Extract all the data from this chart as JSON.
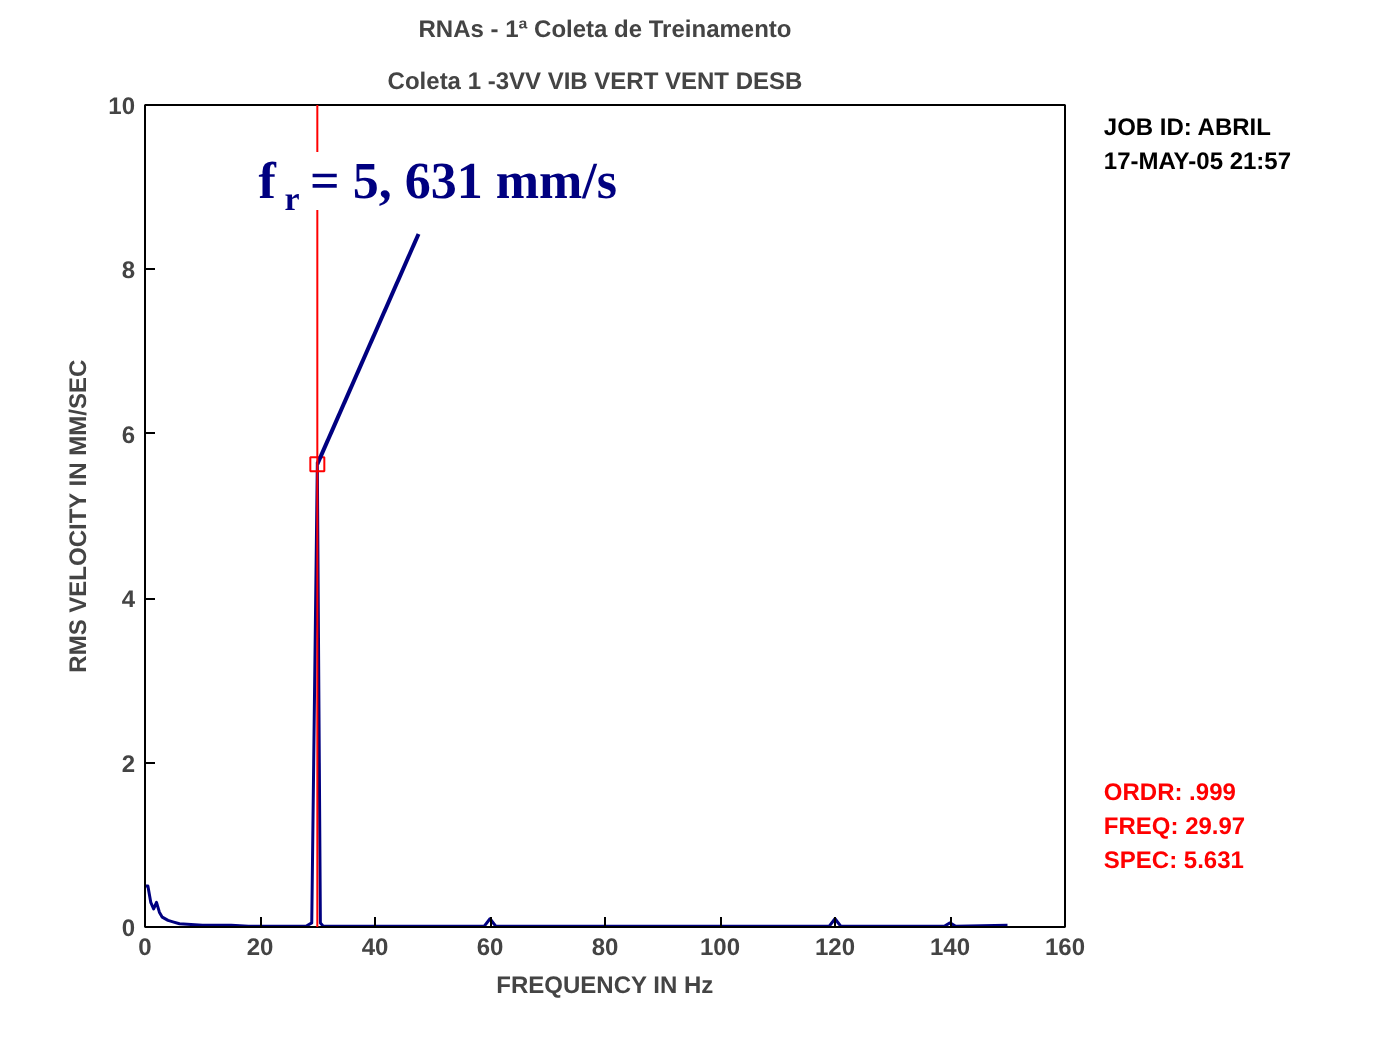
{
  "chart_data": {
    "type": "line",
    "title": "RNAs - 1ª Coleta de Treinamento",
    "subtitle": "Coleta 1  -3VV   VIB VERT VENT DESB",
    "xlabel": "FREQUENCY IN Hz",
    "ylabel": "RMS VELOCITY IN MM/SEC",
    "x": [
      0,
      0.5,
      1,
      1.5,
      2,
      2.5,
      3,
      4,
      5,
      6,
      8,
      10,
      15,
      18,
      20,
      28,
      29,
      29.97,
      30.5,
      31,
      59,
      60,
      61,
      119,
      120,
      121,
      139,
      140,
      141,
      150
    ],
    "series": [
      {
        "color": "#000080",
        "values": [
          0.5,
          0.5,
          0.3,
          0.22,
          0.3,
          0.18,
          0.12,
          0.08,
          0.06,
          0.04,
          0.03,
          0.02,
          0.02,
          0.01,
          0.01,
          0.01,
          0.05,
          5.631,
          0.05,
          0.01,
          0.01,
          0.1,
          0.01,
          0.01,
          0.1,
          0.01,
          0.01,
          0.05,
          0.01,
          0.02
        ]
      }
    ],
    "xlim": [
      0,
      160
    ],
    "ylim": [
      0,
      10
    ],
    "xticks": [
      0,
      20,
      40,
      60,
      80,
      100,
      120,
      140,
      160
    ],
    "yticks": [
      0,
      2,
      4,
      6,
      8,
      10
    ],
    "grid": false,
    "marker": "none",
    "line_style": "solid",
    "ref_lines": [
      {
        "axis": "x",
        "value": 29.97,
        "color": "#ff0000"
      }
    ],
    "annotations": [
      {
        "text": "f$_{r}$ = 5, 631 mm/s",
        "x": 29.97,
        "y": 5.631
      },
      "JOB ID:  ABRIL",
      "17-MAY-05 21:57",
      "ORDR:   .999",
      "FREQ:  29.97",
      "SPEC:  5.631"
    ]
  }
}
